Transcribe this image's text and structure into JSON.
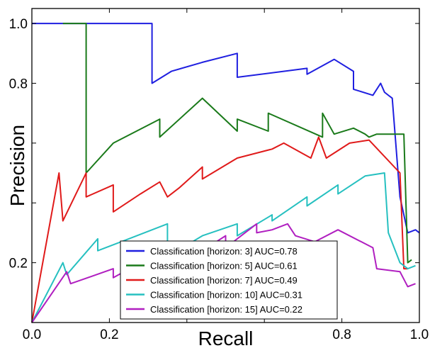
{
  "chart_data": {
    "type": "line",
    "title": "",
    "xlabel": "Recall",
    "ylabel": "Precision",
    "xlim": [
      0.0,
      1.0
    ],
    "ylim": [
      0.0,
      1.05
    ],
    "x_ticks": [
      0.0,
      0.2,
      0.4,
      0.6,
      0.8,
      1.0
    ],
    "x_tick_labels": [
      "0.0",
      "0.2",
      "",
      "",
      "0.8",
      "1.0"
    ],
    "y_ticks": [
      0.2,
      0.4,
      0.6,
      0.8,
      1.0
    ],
    "y_tick_labels": [
      "0.2",
      "",
      "",
      "0.8",
      "1.0"
    ],
    "grid": false,
    "legend_position": "lower-center",
    "series": [
      {
        "name": "Classification [horizon: 3] AUC=0.78",
        "color": "#1f1fe0",
        "x": [
          0.0,
          0.31,
          0.31,
          0.36,
          0.44,
          0.53,
          0.53,
          0.71,
          0.71,
          0.78,
          0.83,
          0.83,
          0.88,
          0.9,
          0.91,
          0.92,
          0.93,
          0.95,
          0.97,
          0.99,
          1.0
        ],
        "y": [
          1.0,
          1.0,
          0.8,
          0.84,
          0.87,
          0.9,
          0.82,
          0.85,
          0.83,
          0.88,
          0.84,
          0.78,
          0.76,
          0.8,
          0.77,
          0.76,
          0.75,
          0.42,
          0.3,
          0.31,
          0.3
        ]
      },
      {
        "name": "Classification [horizon: 5] AUC=0.61",
        "color": "#1a7a1a",
        "x": [
          0.08,
          0.14,
          0.14,
          0.21,
          0.33,
          0.33,
          0.44,
          0.53,
          0.53,
          0.61,
          0.61,
          0.75,
          0.75,
          0.78,
          0.83,
          0.86,
          0.87,
          0.89,
          0.96,
          0.97,
          0.98
        ],
        "y": [
          1.0,
          1.0,
          0.5,
          0.6,
          0.68,
          0.62,
          0.75,
          0.64,
          0.68,
          0.64,
          0.7,
          0.62,
          0.7,
          0.63,
          0.65,
          0.63,
          0.62,
          0.63,
          0.63,
          0.2,
          0.21
        ]
      },
      {
        "name": "Classification [horizon: 7] AUC=0.49",
        "color": "#e01a1a",
        "x": [
          0.0,
          0.07,
          0.08,
          0.14,
          0.14,
          0.21,
          0.21,
          0.28,
          0.33,
          0.35,
          0.38,
          0.44,
          0.44,
          0.53,
          0.62,
          0.65,
          0.72,
          0.74,
          0.76,
          0.82,
          0.87,
          0.95,
          0.96,
          0.97
        ],
        "y": [
          0.0,
          0.5,
          0.34,
          0.5,
          0.42,
          0.46,
          0.37,
          0.43,
          0.47,
          0.42,
          0.45,
          0.52,
          0.48,
          0.55,
          0.58,
          0.6,
          0.55,
          0.62,
          0.55,
          0.6,
          0.61,
          0.5,
          0.18,
          0.18
        ]
      },
      {
        "name": "Classification [horizon: 10] AUC=0.31",
        "color": "#26c0c0",
        "x": [
          0.0,
          0.08,
          0.09,
          0.17,
          0.17,
          0.25,
          0.35,
          0.35,
          0.44,
          0.53,
          0.53,
          0.62,
          0.62,
          0.71,
          0.71,
          0.79,
          0.79,
          0.86,
          0.91,
          0.92,
          0.95,
          0.97,
          0.99
        ],
        "y": [
          0.0,
          0.2,
          0.16,
          0.28,
          0.24,
          0.28,
          0.33,
          0.22,
          0.29,
          0.33,
          0.29,
          0.36,
          0.34,
          0.42,
          0.39,
          0.46,
          0.43,
          0.49,
          0.5,
          0.3,
          0.2,
          0.18,
          0.19
        ]
      },
      {
        "name": "Classification [horizon: 15] AUC=0.22",
        "color": "#b01fc0",
        "x": [
          0.0,
          0.09,
          0.1,
          0.21,
          0.21,
          0.28,
          0.31,
          0.31,
          0.44,
          0.5,
          0.5,
          0.58,
          0.58,
          0.62,
          0.66,
          0.68,
          0.73,
          0.79,
          0.88,
          0.89,
          0.95,
          0.97,
          0.99
        ],
        "y": [
          0.0,
          0.17,
          0.13,
          0.18,
          0.15,
          0.2,
          0.22,
          0.15,
          0.24,
          0.29,
          0.25,
          0.33,
          0.3,
          0.31,
          0.33,
          0.29,
          0.27,
          0.31,
          0.25,
          0.18,
          0.17,
          0.12,
          0.13
        ]
      }
    ]
  }
}
